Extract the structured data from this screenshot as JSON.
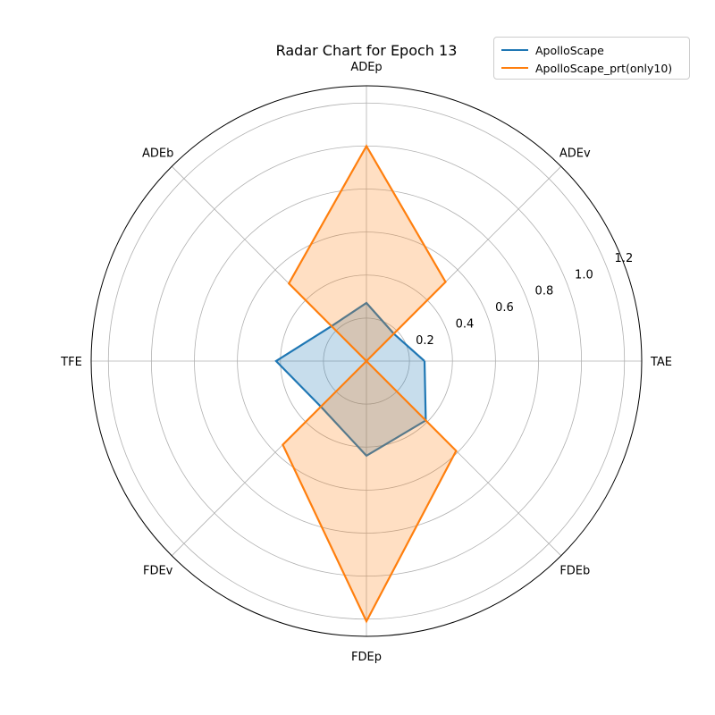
{
  "chart_data": {
    "type": "radar",
    "title": "Radar Chart for Epoch 13",
    "axes": [
      "TAE",
      "ADEv",
      "ADEp",
      "ADEb",
      "TFE",
      "FDEv",
      "FDEp",
      "FDEb"
    ],
    "rlim": [
      0,
      1.28
    ],
    "rticks": [
      0.2,
      0.4,
      0.6,
      0.8,
      1.0,
      1.2
    ],
    "rtick_labels": [
      "0.2",
      "0.4",
      "0.6",
      "0.8",
      "1.0",
      "1.2"
    ],
    "grid": true,
    "legend_position": "top-right",
    "series": [
      {
        "name": "ApolloScape",
        "color": "#1f77b4",
        "values": [
          0.27,
          0.18,
          0.27,
          0.23,
          0.42,
          0.3,
          0.44,
          0.39
        ]
      },
      {
        "name": "ApolloScape_prt(only10)",
        "color": "#ff7f0e",
        "values": [
          0.0,
          0.52,
          1.0,
          0.51,
          0.0,
          0.55,
          1.21,
          0.59
        ]
      }
    ]
  }
}
